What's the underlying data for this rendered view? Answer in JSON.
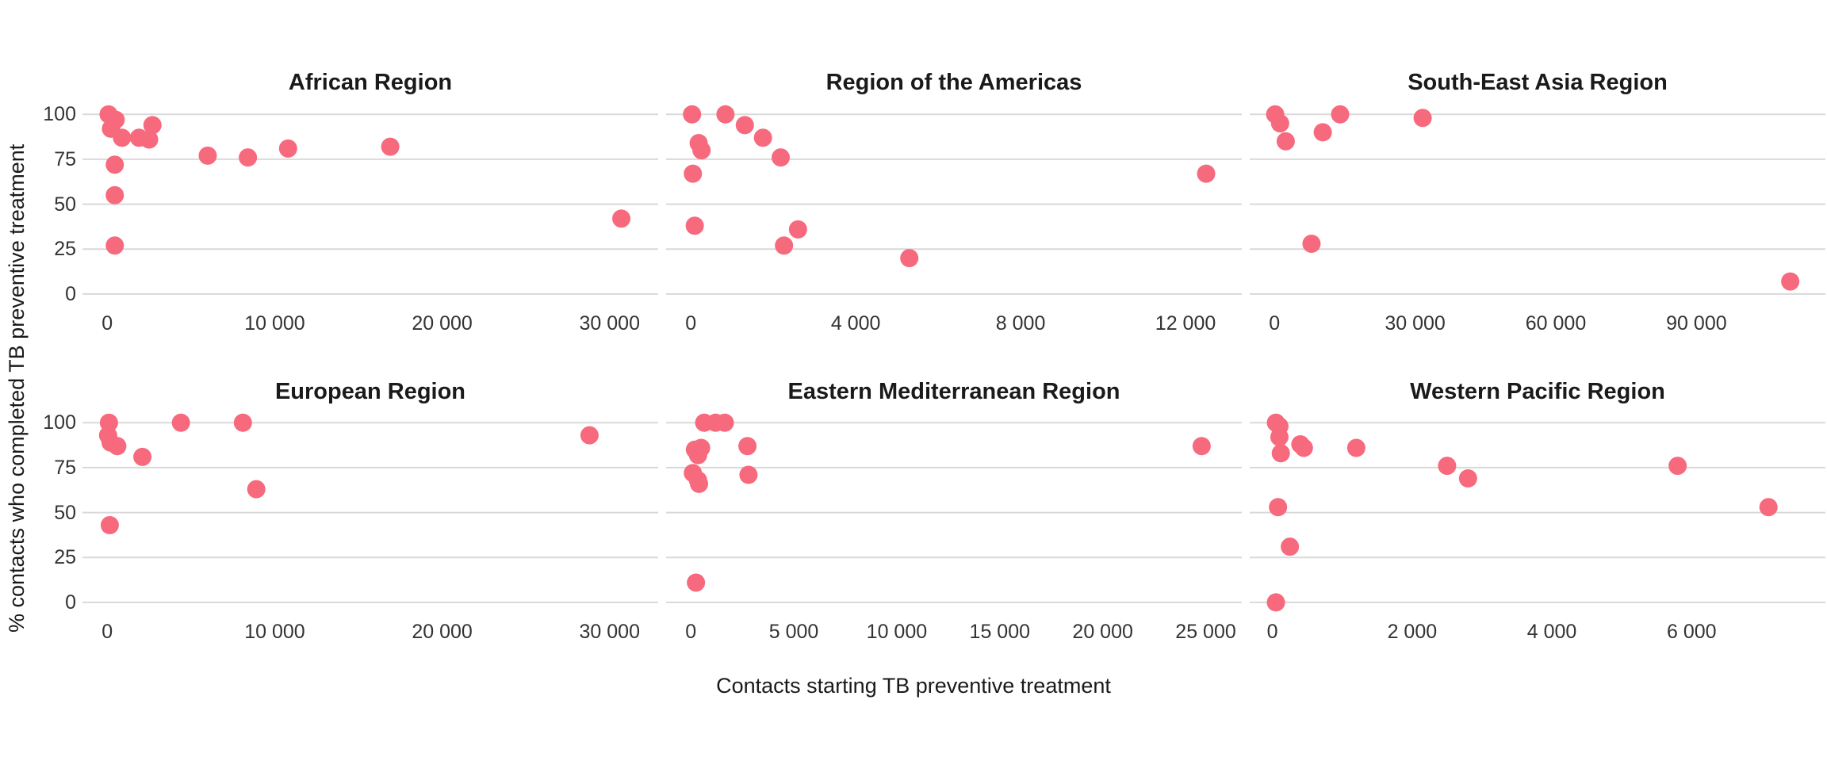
{
  "figure": {
    "x_axis_title": "Contacts starting TB preventive treatment",
    "y_axis_title": "% contacts who completed TB preventive treatment",
    "y_tick_labels": [
      "100",
      "75",
      "50",
      "25",
      "0"
    ],
    "y_tick_values": [
      100,
      75,
      50,
      25,
      0
    ],
    "dot_color": "#F7697D",
    "gridline_color": "#D9D9D9",
    "text_color": "#333333"
  },
  "chart_data": [
    {
      "type": "scatter",
      "title": "African Region",
      "xlabel": "Contacts starting TB preventive treatment",
      "ylabel": "% contacts who completed TB preventive treatment",
      "xlim": [
        -1480,
        32900
      ],
      "ylim": [
        -4,
        108.5
      ],
      "grid": "horizontal-only",
      "legend": "none",
      "x_ticks": [
        {
          "value": 0,
          "label": "0"
        },
        {
          "value": 10000,
          "label": "10 000"
        },
        {
          "value": 20000,
          "label": "20 000"
        },
        {
          "value": 30000,
          "label": "30 000"
        }
      ],
      "points": [
        [
          80,
          100
        ],
        [
          500,
          97
        ],
        [
          220,
          92
        ],
        [
          880,
          87
        ],
        [
          1900,
          87
        ],
        [
          2500,
          86
        ],
        [
          2700,
          94
        ],
        [
          450,
          72
        ],
        [
          450,
          55
        ],
        [
          450,
          27
        ],
        [
          6000,
          77
        ],
        [
          8400,
          76
        ],
        [
          10800,
          81
        ],
        [
          16900,
          82
        ],
        [
          30700,
          42
        ]
      ]
    },
    {
      "type": "scatter",
      "title": "Region of the Americas",
      "xlabel": "Contacts starting TB preventive treatment",
      "ylabel": "% contacts who completed TB preventive treatment",
      "xlim": [
        -600,
        13365
      ],
      "ylim": [
        -4,
        108.5
      ],
      "grid": "horizontal-only",
      "legend": "none",
      "x_ticks": [
        {
          "value": 0,
          "label": "0"
        },
        {
          "value": 4000,
          "label": "4 000"
        },
        {
          "value": 8000,
          "label": "8 000"
        },
        {
          "value": 12000,
          "label": "12 000"
        }
      ],
      "points": [
        [
          30,
          100
        ],
        [
          840,
          100
        ],
        [
          1310,
          94
        ],
        [
          1750,
          87
        ],
        [
          2180,
          76
        ],
        [
          190,
          84
        ],
        [
          260,
          80
        ],
        [
          50,
          67
        ],
        [
          95,
          38
        ],
        [
          2260,
          27
        ],
        [
          2600,
          36
        ],
        [
          5300,
          20
        ],
        [
          12500,
          67
        ]
      ]
    },
    {
      "type": "scatter",
      "title": "South-East Asia Region",
      "xlabel": "Contacts starting TB preventive treatment",
      "ylabel": "% contacts who completed TB preventive treatment",
      "xlim": [
        -5280,
        117500
      ],
      "ylim": [
        -4,
        108.5
      ],
      "grid": "horizontal-only",
      "legend": "none",
      "x_ticks": [
        {
          "value": 0,
          "label": "0"
        },
        {
          "value": 30000,
          "label": "30 000"
        },
        {
          "value": 60000,
          "label": "60 000"
        },
        {
          "value": 90000,
          "label": "90 000"
        }
      ],
      "points": [
        [
          150,
          100
        ],
        [
          1200,
          95
        ],
        [
          2400,
          85
        ],
        [
          10300,
          90
        ],
        [
          14000,
          100
        ],
        [
          31600,
          98
        ],
        [
          7900,
          28
        ],
        [
          110000,
          7
        ]
      ]
    },
    {
      "type": "scatter",
      "title": "European Region",
      "xlabel": "Contacts starting TB preventive treatment",
      "ylabel": "% contacts who completed TB preventive treatment",
      "xlim": [
        -1480,
        32900
      ],
      "ylim": [
        -4,
        108.5
      ],
      "grid": "horizontal-only",
      "legend": "none",
      "x_ticks": [
        {
          "value": 0,
          "label": "0"
        },
        {
          "value": 10000,
          "label": "10 000"
        },
        {
          "value": 20000,
          "label": "20 000"
        },
        {
          "value": 30000,
          "label": "30 000"
        }
      ],
      "points": [
        [
          100,
          100
        ],
        [
          50,
          93
        ],
        [
          200,
          89
        ],
        [
          600,
          87
        ],
        [
          2100,
          81
        ],
        [
          4400,
          100
        ],
        [
          8100,
          100
        ],
        [
          8900,
          63
        ],
        [
          150,
          43
        ],
        [
          28800,
          93
        ]
      ]
    },
    {
      "type": "scatter",
      "title": "Eastern Mediterranean Region",
      "xlabel": "Contacts starting TB preventive treatment",
      "ylabel": "% contacts who completed TB preventive treatment",
      "xlim": [
        -1200,
        26750
      ],
      "ylim": [
        -4,
        108.5
      ],
      "grid": "horizontal-only",
      "legend": "none",
      "x_ticks": [
        {
          "value": 0,
          "label": "0"
        },
        {
          "value": 5000,
          "label": "5 000"
        },
        {
          "value": 10000,
          "label": "10 000"
        },
        {
          "value": 15000,
          "label": "15 000"
        },
        {
          "value": 20000,
          "label": "20 000"
        },
        {
          "value": 25000,
          "label": "25 000"
        }
      ],
      "points": [
        [
          650,
          100
        ],
        [
          1200,
          100
        ],
        [
          1650,
          100
        ],
        [
          2750,
          87
        ],
        [
          500,
          86
        ],
        [
          200,
          85
        ],
        [
          350,
          82
        ],
        [
          100,
          72
        ],
        [
          350,
          68
        ],
        [
          400,
          66
        ],
        [
          2800,
          71
        ],
        [
          250,
          11
        ],
        [
          24800,
          87
        ]
      ]
    },
    {
      "type": "scatter",
      "title": "Western Pacific Region",
      "xlabel": "Contacts starting TB preventive treatment",
      "ylabel": "% contacts who completed TB preventive treatment",
      "xlim": [
        -325,
        7915
      ],
      "ylim": [
        -4,
        108.5
      ],
      "grid": "horizontal-only",
      "legend": "none",
      "x_ticks": [
        {
          "value": 0,
          "label": "0"
        },
        {
          "value": 2000,
          "label": "2 000"
        },
        {
          "value": 4000,
          "label": "4 000"
        },
        {
          "value": 6000,
          "label": "6 000"
        }
      ],
      "points": [
        [
          50,
          100
        ],
        [
          100,
          98
        ],
        [
          100,
          92
        ],
        [
          400,
          88
        ],
        [
          450,
          86
        ],
        [
          120,
          83
        ],
        [
          1200,
          86
        ],
        [
          2500,
          76
        ],
        [
          2800,
          69
        ],
        [
          5800,
          76
        ],
        [
          80,
          53
        ],
        [
          7100,
          53
        ],
        [
          250,
          31
        ],
        [
          50,
          0
        ]
      ]
    }
  ]
}
